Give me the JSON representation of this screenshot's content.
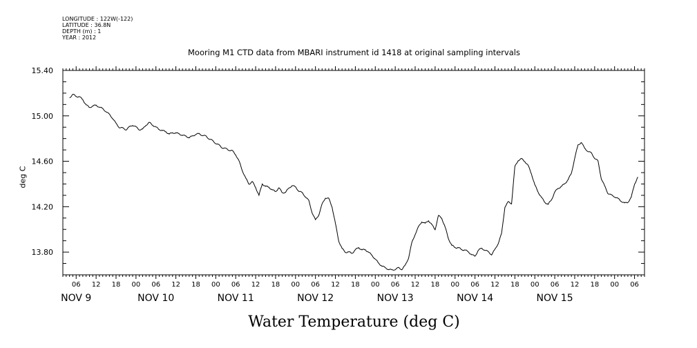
{
  "meta": {
    "longitude": "LONGITUDE : 122W(-122)",
    "latitude": "LATITUDE : 36.8N",
    "depth": "DEPTH (m) : 1",
    "year": "YEAR : 2012"
  },
  "title": "Mooring M1 CTD data from MBARI instrument id 1418 at original sampling intervals",
  "footer_title": "Water Temperature (deg C)",
  "chart_data": {
    "type": "line",
    "title": "Mooring M1 CTD data from MBARI instrument id 1418 at original sampling intervals",
    "xlabel": "",
    "ylabel": "deg C",
    "ylim": [
      13.6,
      15.4
    ],
    "y_ticks": [
      "13.80",
      "14.20",
      "14.60",
      "15.00",
      "15.40"
    ],
    "x_start_hour": 196,
    "x_end_hour": 363,
    "x_hour_labels": [
      "00",
      "06",
      "12",
      "18"
    ],
    "day_labels": [
      "NOV  9",
      "NOV 10",
      "NOV 11",
      "NOV 12",
      "NOV 13",
      "NOV 14",
      "NOV 15"
    ],
    "series": [
      {
        "values": [
          [
            196,
            15.16
          ],
          [
            197,
            15.19
          ],
          [
            198,
            15.17
          ],
          [
            199,
            15.17
          ],
          [
            200,
            15.14
          ],
          [
            201,
            15.1
          ],
          [
            202,
            15.07
          ],
          [
            203,
            15.09
          ],
          [
            204,
            15.09
          ],
          [
            205,
            15.08
          ],
          [
            206,
            15.06
          ],
          [
            207,
            15.04
          ],
          [
            208,
            15.01
          ],
          [
            209,
            14.98
          ],
          [
            210,
            14.93
          ],
          [
            211,
            14.9
          ],
          [
            212,
            14.89
          ],
          [
            213,
            14.88
          ],
          [
            214,
            14.9
          ],
          [
            215,
            14.92
          ],
          [
            216,
            14.9
          ],
          [
            217,
            14.88
          ],
          [
            218,
            14.88
          ],
          [
            219,
            14.92
          ],
          [
            220,
            14.94
          ],
          [
            221,
            14.92
          ],
          [
            222,
            14.9
          ],
          [
            223,
            14.88
          ],
          [
            224,
            14.87
          ],
          [
            225,
            14.86
          ],
          [
            226,
            14.84
          ],
          [
            227,
            14.85
          ],
          [
            228,
            14.85
          ],
          [
            229,
            14.84
          ],
          [
            230,
            14.83
          ],
          [
            231,
            14.82
          ],
          [
            232,
            14.81
          ],
          [
            233,
            14.82
          ],
          [
            234,
            14.84
          ],
          [
            235,
            14.84
          ],
          [
            236,
            14.83
          ],
          [
            237,
            14.82
          ],
          [
            238,
            14.8
          ],
          [
            239,
            14.78
          ],
          [
            240,
            14.76
          ],
          [
            241,
            14.74
          ],
          [
            242,
            14.72
          ],
          [
            243,
            14.71
          ],
          [
            244,
            14.7
          ],
          [
            245,
            14.69
          ],
          [
            246,
            14.66
          ],
          [
            247,
            14.6
          ],
          [
            248,
            14.52
          ],
          [
            249,
            14.45
          ],
          [
            250,
            14.4
          ],
          [
            251,
            14.42
          ],
          [
            252,
            14.37
          ],
          [
            253,
            14.3
          ],
          [
            254,
            14.4
          ],
          [
            255,
            14.38
          ],
          [
            256,
            14.37
          ],
          [
            257,
            14.35
          ],
          [
            258,
            14.33
          ],
          [
            259,
            14.37
          ],
          [
            260,
            14.32
          ],
          [
            261,
            14.33
          ],
          [
            262,
            14.36
          ],
          [
            263,
            14.39
          ],
          [
            264,
            14.37
          ],
          [
            265,
            14.34
          ],
          [
            266,
            14.32
          ],
          [
            267,
            14.29
          ],
          [
            268,
            14.25
          ],
          [
            269,
            14.15
          ],
          [
            270,
            14.08
          ],
          [
            271,
            14.13
          ],
          [
            272,
            14.22
          ],
          [
            273,
            14.28
          ],
          [
            274,
            14.27
          ],
          [
            275,
            14.2
          ],
          [
            276,
            14.05
          ],
          [
            277,
            13.9
          ],
          [
            278,
            13.83
          ],
          [
            279,
            13.8
          ],
          [
            280,
            13.8
          ],
          [
            281,
            13.79
          ],
          [
            282,
            13.82
          ],
          [
            283,
            13.84
          ],
          [
            284,
            13.82
          ],
          [
            285,
            13.82
          ],
          [
            286,
            13.8
          ],
          [
            287,
            13.77
          ],
          [
            288,
            13.74
          ],
          [
            289,
            13.7
          ],
          [
            290,
            13.68
          ],
          [
            291,
            13.66
          ],
          [
            292,
            13.65
          ],
          [
            293,
            13.64
          ],
          [
            294,
            13.65
          ],
          [
            295,
            13.66
          ],
          [
            296,
            13.65
          ],
          [
            297,
            13.68
          ],
          [
            298,
            13.75
          ],
          [
            299,
            13.88
          ],
          [
            300,
            13.96
          ],
          [
            301,
            14.02
          ],
          [
            302,
            14.07
          ],
          [
            303,
            14.05
          ],
          [
            304,
            14.08
          ],
          [
            305,
            14.04
          ],
          [
            306,
            14.0
          ],
          [
            307,
            14.12
          ],
          [
            308,
            14.1
          ],
          [
            309,
            14.02
          ],
          [
            310,
            13.92
          ],
          [
            311,
            13.86
          ],
          [
            312,
            13.84
          ],
          [
            313,
            13.84
          ],
          [
            314,
            13.82
          ],
          [
            315,
            13.82
          ],
          [
            316,
            13.8
          ],
          [
            317,
            13.78
          ],
          [
            318,
            13.76
          ],
          [
            319,
            13.82
          ],
          [
            320,
            13.83
          ],
          [
            321,
            13.82
          ],
          [
            322,
            13.8
          ],
          [
            323,
            13.78
          ],
          [
            324,
            13.82
          ],
          [
            325,
            13.88
          ],
          [
            326,
            13.96
          ],
          [
            327,
            14.2
          ],
          [
            328,
            14.24
          ],
          [
            329,
            14.23
          ],
          [
            330,
            14.55
          ],
          [
            331,
            14.61
          ],
          [
            332,
            14.62
          ],
          [
            333,
            14.6
          ],
          [
            334,
            14.56
          ],
          [
            335,
            14.49
          ],
          [
            336,
            14.39
          ],
          [
            337,
            14.33
          ],
          [
            338,
            14.28
          ],
          [
            339,
            14.24
          ],
          [
            340,
            14.22
          ],
          [
            341,
            14.26
          ],
          [
            342,
            14.33
          ],
          [
            343,
            14.36
          ],
          [
            344,
            14.38
          ],
          [
            345,
            14.4
          ],
          [
            346,
            14.44
          ],
          [
            347,
            14.49
          ],
          [
            348,
            14.63
          ],
          [
            349,
            14.74
          ],
          [
            350,
            14.77
          ],
          [
            351,
            14.71
          ],
          [
            352,
            14.69
          ],
          [
            353,
            14.67
          ],
          [
            354,
            14.63
          ],
          [
            355,
            14.6
          ],
          [
            356,
            14.45
          ],
          [
            357,
            14.38
          ],
          [
            358,
            14.32
          ],
          [
            359,
            14.3
          ],
          [
            360,
            14.29
          ],
          [
            361,
            14.27
          ],
          [
            362,
            14.25
          ],
          [
            363,
            14.23
          ],
          [
            364,
            14.24
          ],
          [
            365,
            14.28
          ],
          [
            366,
            14.4
          ],
          [
            367,
            14.46
          ]
        ]
      }
    ]
  }
}
